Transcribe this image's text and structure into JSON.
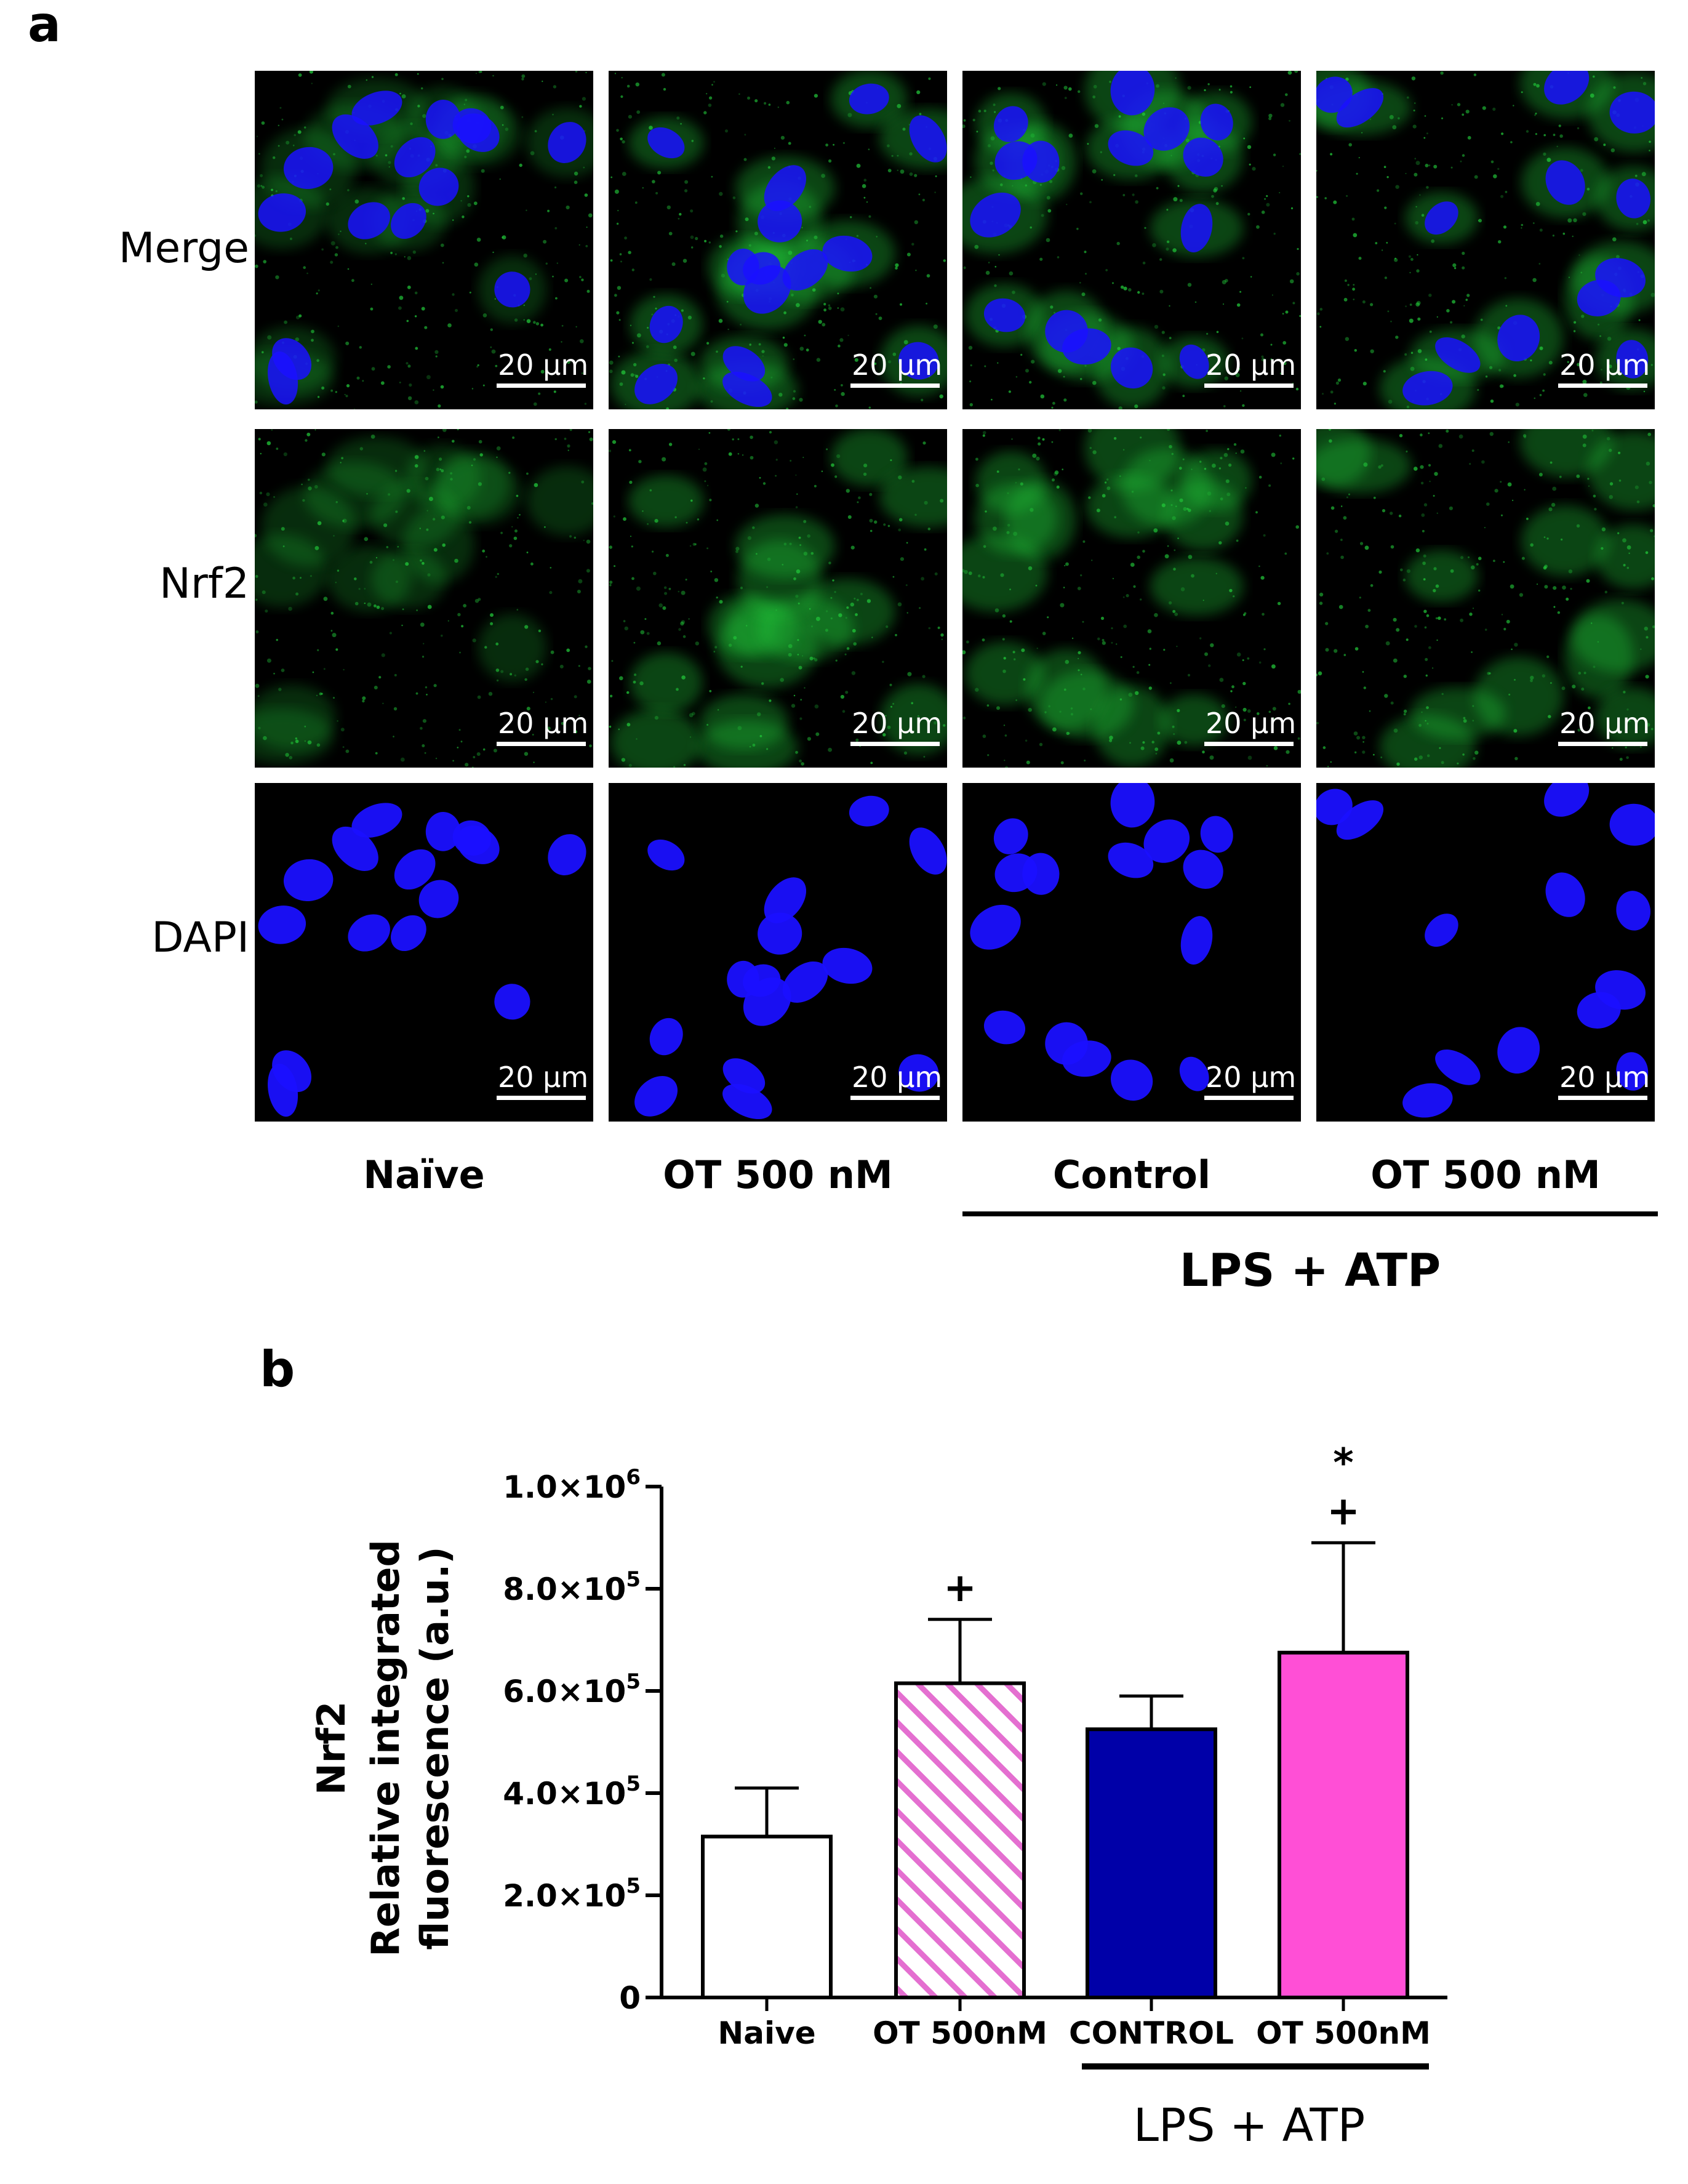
{
  "figure": {
    "panel_a_label": "a",
    "panel_b_label": "b",
    "row_labels": [
      "Merge",
      "Nrf2",
      "DAPI"
    ],
    "column_labels": [
      "Naïve",
      "OT 500 nM",
      "Control",
      "OT 500 nM"
    ],
    "group_label": "LPS + ATP",
    "scale_bar_label": "20 µm",
    "colors": {
      "nucleus": "#1a10ff",
      "nrf2": "#22c93a"
    }
  },
  "chart_data": {
    "type": "bar",
    "categories": [
      "Naive",
      "OT 500nM",
      "CONTROL",
      "OT 500nM"
    ],
    "values": [
      315000,
      615000,
      525000,
      675000
    ],
    "errors": [
      95000,
      125000,
      65000,
      215000
    ],
    "bar_fills": [
      "#ffffff",
      "hatch-pink",
      "#0000a8",
      "#ff4fd6"
    ],
    "annotations": [
      "",
      "+",
      "",
      "*\n+"
    ],
    "ylabel_line1": "Nrf2",
    "ylabel_line2": "Relative integrated",
    "ylabel_line3": "fluorescence (a.u.)",
    "ylim": [
      0,
      1000000
    ],
    "yticks": [
      0,
      200000,
      400000,
      600000,
      800000,
      1000000
    ],
    "ytick_labels": [
      "0",
      "2.0×10",
      "4.0×10",
      "6.0×10",
      "8.0×10",
      "1.0×10"
    ],
    "ytick_exponents": [
      "",
      "5",
      "5",
      "5",
      "5",
      "6"
    ],
    "group_label": "LPS + ATP",
    "grid": false,
    "legend": "none"
  }
}
